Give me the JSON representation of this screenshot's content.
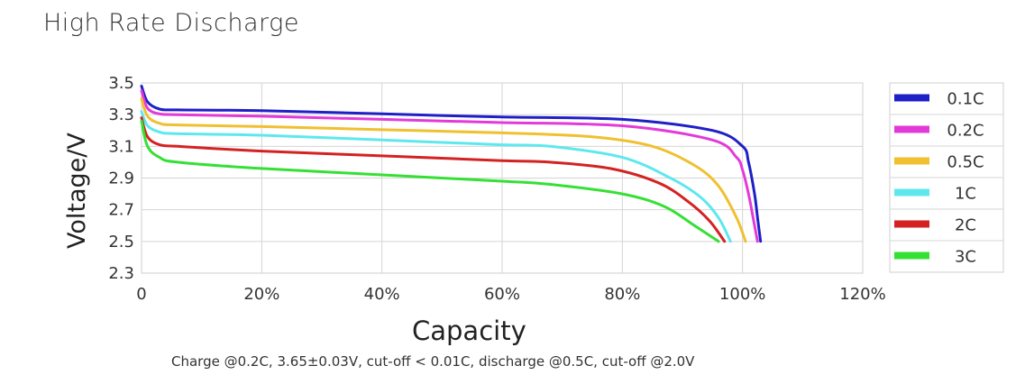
{
  "chart_data": {
    "type": "line",
    "title": "High Rate Discharge",
    "xlabel": "Capacity",
    "ylabel": "Voltage/V",
    "footnote": "Charge @0.2C, 3.65±0.03V,  cut-off < 0.01C, discharge @0.5C, cut-off @2.0V",
    "xlim": [
      0,
      120
    ],
    "ylim": [
      2.3,
      3.5
    ],
    "xticks": [
      0,
      20,
      40,
      60,
      80,
      100,
      120
    ],
    "xtick_labels": [
      "0",
      "20%",
      "40%",
      "60%",
      "80%",
      "100%",
      "120%"
    ],
    "yticks": [
      3.5,
      3.3,
      3.1,
      2.9,
      2.7,
      2.5,
      2.3
    ],
    "ytick_labels": [
      "3.5",
      "3.3",
      "3.1",
      "2.9",
      "2.7",
      "2.5",
      "2.3"
    ],
    "grid": true,
    "legend_position": "right",
    "series": [
      {
        "name": "0.1C",
        "color": "#1f1fc8",
        "x": [
          0,
          1,
          3,
          6,
          20,
          40,
          60,
          80,
          95,
          100,
          101,
          102,
          102.5,
          103
        ],
        "y": [
          3.48,
          3.38,
          3.335,
          3.33,
          3.325,
          3.305,
          3.285,
          3.27,
          3.2,
          3.1,
          3.0,
          2.8,
          2.65,
          2.5
        ]
      },
      {
        "name": "0.2C",
        "color": "#e23ad9",
        "x": [
          0,
          1,
          3,
          6,
          20,
          40,
          60,
          80,
          95,
          99,
          100,
          101,
          102,
          102.5
        ],
        "y": [
          3.45,
          3.34,
          3.305,
          3.3,
          3.29,
          3.27,
          3.25,
          3.23,
          3.14,
          3.03,
          2.95,
          2.8,
          2.6,
          2.5
        ]
      },
      {
        "name": "0.5C",
        "color": "#f0c030",
        "x": [
          0,
          1,
          3,
          6,
          20,
          40,
          60,
          75,
          85,
          92,
          96,
          99,
          100.5
        ],
        "y": [
          3.4,
          3.29,
          3.245,
          3.235,
          3.225,
          3.205,
          3.185,
          3.16,
          3.1,
          2.98,
          2.85,
          2.65,
          2.5
        ]
      },
      {
        "name": "1C",
        "color": "#5ee8ee",
        "x": [
          0,
          1,
          3,
          6,
          20,
          40,
          60,
          68,
          80,
          88,
          93,
          96,
          98
        ],
        "y": [
          3.32,
          3.23,
          3.19,
          3.18,
          3.17,
          3.14,
          3.11,
          3.1,
          3.03,
          2.9,
          2.78,
          2.65,
          2.5
        ]
      },
      {
        "name": "2C",
        "color": "#d42222",
        "x": [
          0,
          1,
          3,
          6,
          20,
          40,
          60,
          68,
          78,
          86,
          91,
          94.5,
          97
        ],
        "y": [
          3.28,
          3.16,
          3.11,
          3.1,
          3.07,
          3.04,
          3.01,
          3.0,
          2.96,
          2.87,
          2.75,
          2.63,
          2.5
        ]
      },
      {
        "name": "3C",
        "color": "#35e035",
        "x": [
          0,
          1,
          3,
          6,
          20,
          40,
          60,
          68,
          80,
          87,
          92,
          96
        ],
        "y": [
          3.26,
          3.1,
          3.03,
          3.0,
          2.96,
          2.92,
          2.88,
          2.86,
          2.8,
          2.72,
          2.6,
          2.5
        ]
      }
    ]
  }
}
